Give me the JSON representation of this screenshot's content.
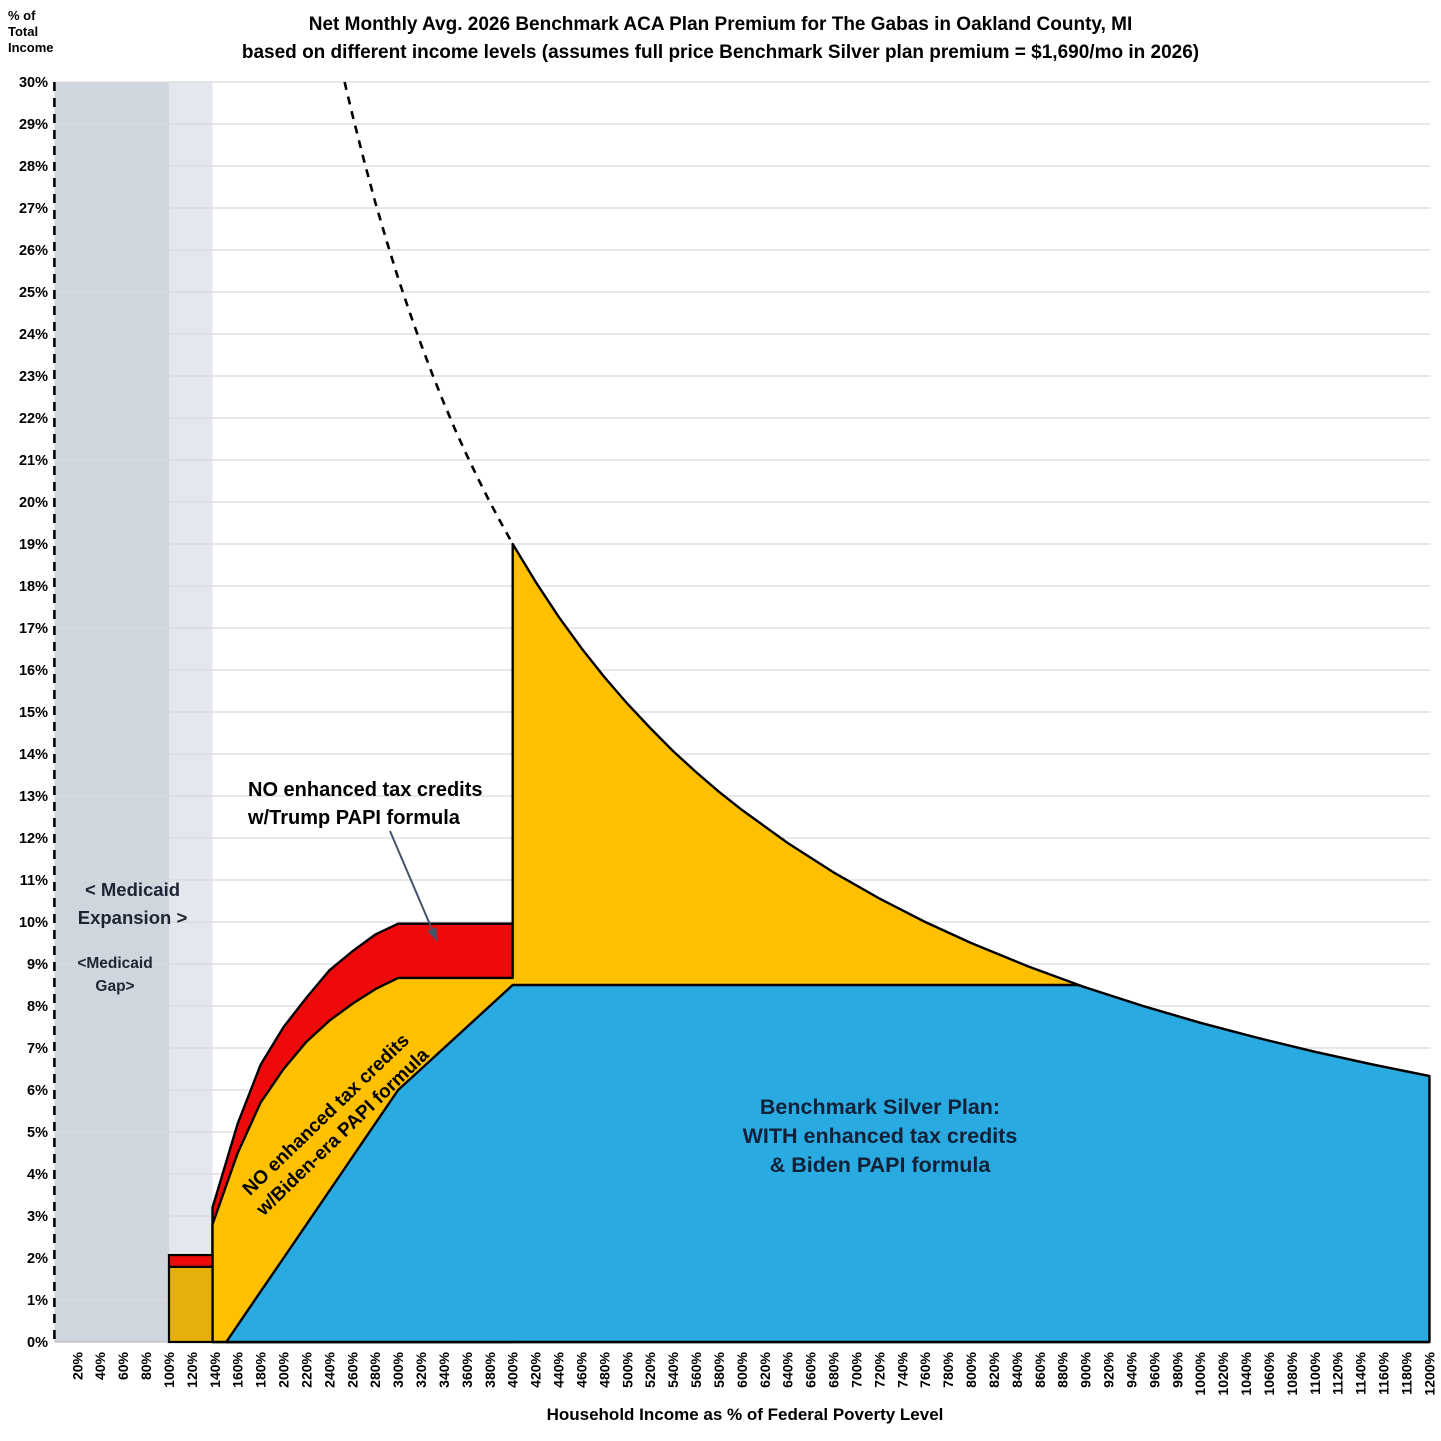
{
  "title": {
    "line1": "Net Monthly Avg. 2026 Benchmark ACA Plan Premium for The Gabas in Oakland County, MI",
    "line2": "based on different income levels (assumes full price Benchmark Silver plan premium = $1,690/mo in 2026)"
  },
  "y_axis": {
    "unit_line1": "% of",
    "unit_line2": "Total",
    "unit_line3": "Income",
    "ticks": [
      "0%",
      "1%",
      "2%",
      "3%",
      "4%",
      "5%",
      "6%",
      "7%",
      "8%",
      "9%",
      "10%",
      "11%",
      "12%",
      "13%",
      "14%",
      "15%",
      "16%",
      "17%",
      "18%",
      "19%",
      "20%",
      "21%",
      "22%",
      "23%",
      "24%",
      "25%",
      "26%",
      "27%",
      "28%",
      "29%",
      "30%"
    ]
  },
  "x_axis": {
    "title": "Household Income as % of Federal Poverty Level",
    "ticks": [
      "20%",
      "40%",
      "60%",
      "80%",
      "100%",
      "120%",
      "140%",
      "160%",
      "180%",
      "200%",
      "220%",
      "240%",
      "260%",
      "280%",
      "300%",
      "320%",
      "340%",
      "360%",
      "380%",
      "400%",
      "420%",
      "440%",
      "460%",
      "480%",
      "500%",
      "520%",
      "540%",
      "560%",
      "580%",
      "600%",
      "620%",
      "640%",
      "660%",
      "680%",
      "700%",
      "720%",
      "740%",
      "760%",
      "780%",
      "800%",
      "820%",
      "840%",
      "860%",
      "880%",
      "900%",
      "920%",
      "940%",
      "960%",
      "980%",
      "1000%",
      "1020%",
      "1040%",
      "1060%",
      "1080%",
      "1100%",
      "1120%",
      "1140%",
      "1160%",
      "1180%",
      "1200%"
    ]
  },
  "annotations": {
    "medicaid_expansion_line1": "< Medicaid",
    "medicaid_expansion_line2": "Expansion >",
    "medicaid_gap_line1": "<Medicaid",
    "medicaid_gap_line2": "Gap>",
    "trump_line1": "NO enhanced tax credits",
    "trump_line2": "w/Trump PAPI formula",
    "biden_line1": "NO enhanced tax credits",
    "biden_line2": "w/Biden-era PAPI formula",
    "blue_line1": "Benchmark Silver Plan:",
    "blue_line2": "WITH enhanced tax credits",
    "blue_line3": "& Biden PAPI formula"
  },
  "colors": {
    "gold": "#FFC000",
    "dark_gold": "#E6B00A",
    "red": "#EE0A0A",
    "blue": "#29ABE2",
    "band_dark": "#D0D6DE",
    "band_light": "#E4E7ED",
    "gridline": "#D9D9D9",
    "outline": "#000000",
    "arrow": "#44546A",
    "baseline": "#BFBFBF"
  },
  "chart_data": {
    "type": "area",
    "title": "Net Monthly Avg. 2026 Benchmark ACA Plan Premium for The Gabas in Oakland County, MI based on different income levels (assumes full price Benchmark Silver plan premium = $1,690/mo in 2026)",
    "xlabel": "Household Income as % of Federal Poverty Level",
    "ylabel": "% of Total Income",
    "xlim_fpl_pct": [
      0,
      1200
    ],
    "ylim_pct_of_income": [
      0,
      30
    ],
    "grid": "horizontal 1% gridlines",
    "full_price_premium_per_month": 1690,
    "full_price_pct_of_income_formula": "7600 / FPL%  (19% of income at 400% FPL)",
    "regions": {
      "medicaid_expansion_band_fpl": [
        0,
        100
      ],
      "medicaid_gap_band_fpl": [
        100,
        138
      ]
    },
    "bar_100_138": {
      "fpl_range": [
        100,
        138
      ],
      "gold_value_pct": 1.79,
      "red_value_pct": 2.07
    },
    "series": [
      {
        "name": "NO enhanced tax credits w/Trump PAPI formula",
        "color_key": "red",
        "ring": [
          [
            138,
            0
          ],
          [
            138,
            3.2
          ],
          [
            160,
            5.2
          ],
          [
            180,
            6.6
          ],
          [
            200,
            7.5
          ],
          [
            220,
            8.2
          ],
          [
            240,
            8.85
          ],
          [
            260,
            9.3
          ],
          [
            280,
            9.7
          ],
          [
            300,
            9.96
          ],
          [
            400,
            9.96
          ],
          [
            400,
            0
          ]
        ]
      },
      {
        "name": "NO enhanced tax credits w/Biden-era PAPI formula",
        "color_key": "gold",
        "ring": [
          [
            138,
            0
          ],
          [
            138,
            2.8
          ],
          [
            160,
            4.5
          ],
          [
            180,
            5.7
          ],
          [
            200,
            6.5
          ],
          [
            220,
            7.15
          ],
          [
            240,
            7.65
          ],
          [
            260,
            8.05
          ],
          [
            280,
            8.4
          ],
          [
            300,
            8.67
          ],
          [
            400,
            8.67
          ],
          [
            400,
            19
          ],
          [
            420,
            18.1
          ],
          [
            440,
            17.27
          ],
          [
            460,
            16.52
          ],
          [
            480,
            15.83
          ],
          [
            500,
            15.2
          ],
          [
            520,
            14.62
          ],
          [
            540,
            14.07
          ],
          [
            560,
            13.57
          ],
          [
            580,
            13.1
          ],
          [
            600,
            12.67
          ],
          [
            640,
            11.88
          ],
          [
            680,
            11.18
          ],
          [
            720,
            10.56
          ],
          [
            760,
            10
          ],
          [
            800,
            9.5
          ],
          [
            850,
            8.94
          ],
          [
            900,
            8.44
          ],
          [
            950,
            8
          ],
          [
            1000,
            7.6
          ],
          [
            1050,
            7.24
          ],
          [
            1100,
            6.91
          ],
          [
            1150,
            6.61
          ],
          [
            1200,
            6.33
          ],
          [
            1200,
            0
          ]
        ]
      },
      {
        "name": "Benchmark Silver Plan: WITH enhanced tax credits & Biden PAPI formula",
        "color_key": "blue",
        "ring": [
          [
            150,
            0
          ],
          [
            160,
            0.4
          ],
          [
            180,
            1.2
          ],
          [
            200,
            2
          ],
          [
            220,
            2.8
          ],
          [
            240,
            3.6
          ],
          [
            250,
            4
          ],
          [
            260,
            4.4
          ],
          [
            280,
            5.2
          ],
          [
            300,
            6
          ],
          [
            320,
            6.5
          ],
          [
            340,
            7
          ],
          [
            360,
            7.5
          ],
          [
            380,
            8
          ],
          [
            400,
            8.5
          ],
          [
            893,
            8.5
          ],
          [
            900,
            8.44
          ],
          [
            950,
            8
          ],
          [
            1000,
            7.6
          ],
          [
            1050,
            7.24
          ],
          [
            1100,
            6.91
          ],
          [
            1150,
            6.61
          ],
          [
            1200,
            6.33
          ],
          [
            1200,
            0
          ]
        ]
      }
    ],
    "dashed_full_price_curve": [
      [
        253.3,
        30
      ],
      [
        260,
        29.23
      ],
      [
        270,
        28.15
      ],
      [
        280,
        27.14
      ],
      [
        290,
        26.21
      ],
      [
        300,
        25.33
      ],
      [
        310,
        24.52
      ],
      [
        320,
        23.75
      ],
      [
        330,
        23.03
      ],
      [
        340,
        22.35
      ],
      [
        350,
        21.71
      ],
      [
        360,
        21.11
      ],
      [
        370,
        20.54
      ],
      [
        380,
        20
      ],
      [
        390,
        19.49
      ],
      [
        400,
        19
      ]
    ],
    "legend_position": "labels inside areas"
  }
}
